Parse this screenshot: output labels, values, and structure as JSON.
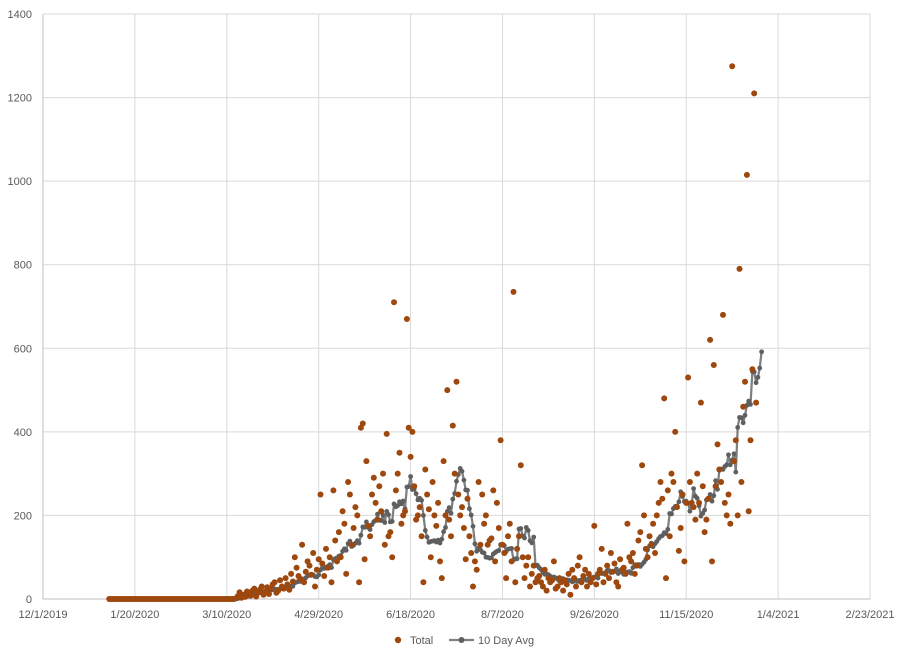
{
  "chart_data": {
    "type": "scatter",
    "title": "",
    "xlabel": "",
    "ylabel": "",
    "x_ticks": [
      "12/1/2019",
      "1/20/2020",
      "3/10/2020",
      "4/29/2020",
      "6/18/2020",
      "8/7/2020",
      "9/26/2020",
      "11/15/2020",
      "1/4/2021",
      "2/23/2021"
    ],
    "y_ticks": [
      "0",
      "200",
      "400",
      "600",
      "800",
      "1000",
      "1200",
      "1400"
    ],
    "xlim": [
      "2019-12-01",
      "2021-02-23"
    ],
    "ylim": [
      0,
      1400
    ],
    "grid": "vertical and horizontal gridlines",
    "legend_position": "bottom",
    "series": [
      {
        "name": "Total",
        "kind": "markers",
        "color": "#9e480e",
        "start_date": "2020-01-06",
        "values": [
          0,
          0,
          0,
          0,
          0,
          0,
          0,
          0,
          0,
          0,
          0,
          0,
          0,
          0,
          0,
          0,
          0,
          0,
          0,
          0,
          0,
          0,
          0,
          0,
          0,
          0,
          0,
          0,
          0,
          0,
          0,
          0,
          0,
          0,
          0,
          0,
          0,
          0,
          0,
          0,
          0,
          0,
          0,
          0,
          0,
          0,
          0,
          0,
          0,
          0,
          0,
          0,
          0,
          0,
          0,
          0,
          0,
          0,
          0,
          0,
          0,
          0,
          0,
          0,
          0,
          0,
          0,
          0,
          0,
          2,
          7,
          16,
          3,
          10,
          5,
          18,
          12,
          8,
          20,
          25,
          6,
          15,
          22,
          30,
          10,
          18,
          28,
          12,
          25,
          35,
          40,
          15,
          20,
          45,
          30,
          25,
          50,
          35,
          22,
          60,
          42,
          100,
          75,
          55,
          48,
          130,
          40,
          65,
          90,
          80,
          58,
          110,
          30,
          70,
          95,
          250,
          85,
          55,
          120,
          75,
          100,
          40,
          260,
          140,
          90,
          160,
          100,
          210,
          180,
          60,
          280,
          250,
          130,
          170,
          220,
          200,
          40,
          410,
          420,
          95,
          330,
          175,
          150,
          250,
          290,
          230,
          190,
          270,
          210,
          300,
          130,
          395,
          150,
          160,
          100,
          710,
          260,
          300,
          350,
          180,
          200,
          210,
          670,
          410,
          340,
          400,
          270,
          190,
          200,
          220,
          150,
          40,
          310,
          250,
          215,
          100,
          280,
          200,
          175,
          230,
          90,
          50,
          330,
          200,
          500,
          190,
          150,
          415,
          300,
          520,
          250,
          200,
          220,
          170,
          95,
          240,
          150,
          110,
          30,
          90,
          70,
          280,
          130,
          250,
          180,
          200,
          130,
          140,
          145,
          260,
          90,
          230,
          170,
          380,
          130,
          110,
          50,
          150,
          180,
          90,
          735,
          40,
          120,
          150,
          320,
          100,
          50,
          80,
          100,
          30,
          60,
          80,
          40,
          50,
          55,
          40,
          30,
          70,
          20,
          50,
          40,
          45,
          90,
          25,
          30,
          50,
          40,
          20,
          45,
          35,
          60,
          10,
          70,
          50,
          30,
          80,
          100,
          40,
          55,
          70,
          30,
          60,
          40,
          50,
          175,
          35,
          60,
          70,
          120,
          40,
          60,
          80,
          50,
          110,
          65,
          85,
          40,
          30,
          95,
          70,
          75,
          60,
          180,
          100,
          90,
          110,
          60,
          80,
          140,
          160,
          320,
          200,
          120,
          100,
          150,
          130,
          180,
          110,
          200,
          230,
          280,
          240,
          480,
          50,
          260,
          150,
          300,
          280,
          400,
          220,
          115,
          170,
          250,
          90,
          230,
          530,
          280,
          230,
          220,
          190,
          300,
          230,
          470,
          270,
          160,
          190,
          240,
          620,
          90,
          560,
          270,
          370,
          310,
          280,
          680,
          230,
          200,
          250,
          180,
          1275,
          330,
          380,
          200,
          790,
          280,
          460,
          520,
          1015,
          210,
          380,
          550,
          1210,
          470
        ]
      },
      {
        "name": "10 Day Avg",
        "kind": "line",
        "color": "#7f7f7f",
        "start_date": "2020-01-06",
        "values": [
          0,
          0,
          0,
          0,
          0,
          0,
          0,
          0,
          0,
          0,
          0,
          0,
          0,
          0,
          0,
          0,
          0,
          0,
          0,
          0,
          0,
          0,
          0,
          0,
          0,
          0,
          0,
          0,
          0,
          0,
          0,
          0,
          0,
          0,
          0,
          0,
          0,
          0,
          0,
          0,
          0,
          0,
          0,
          0,
          0,
          0,
          0,
          0,
          0,
          0,
          0,
          0,
          0,
          0,
          0,
          0,
          0,
          0,
          0,
          0,
          0,
          0,
          0,
          0,
          0,
          0,
          0,
          0,
          0,
          0.2,
          0.9,
          2.5,
          2.8,
          3.8,
          4.3,
          6.1,
          7.3,
          8.1,
          10.1,
          12.4,
          13.4,
          14.3,
          15.2,
          17.2,
          17.6,
          17.6,
          20.4,
          20.8,
          21.3,
          22.3,
          23.8,
          23.1,
          22.9,
          24.4,
          24.9,
          24.6,
          26.8,
          28.1,
          27.8,
          30.3,
          30.5,
          38.5,
          40.8,
          41.8,
          42.1,
          48.1,
          47.7,
          50.7,
          55.2,
          57.2,
          57.0,
          58.0,
          53.5,
          53.0,
          57.7,
          69.7,
          74.2,
          73.2,
          76.2,
          77.9,
          82.1,
          75.1,
          94.1,
          96.6,
          98.1,
          102.6,
          104.1,
          114.1,
          120.1,
          116.6,
          132.6,
          138.6,
          125.6,
          128.6,
          133.6,
          139.6,
          133.6,
          152.6,
          172.6,
          171.6,
          184.6,
          171.1,
          166.1,
          178.1,
          185.1,
          188.1,
          203.1,
          188.6,
          187.6,
          201.1,
          183.1,
          209.6,
          202.1,
          184.6,
          185.6,
          227.6,
          220.6,
          223.6,
          232.6,
          227.6,
          234.6,
          216.1,
          268.1,
          269.1,
          293.1,
          262.1,
          263.1,
          252.1,
          237.1,
          241.1,
          236.1,
          200.1,
          164.1,
          148.1,
          135.6,
          137.6,
          138.6,
          139.6,
          136.1,
          140.6,
          134.1,
          143.1,
          161.1,
          171.1,
          209.6,
          218.6,
          205.1,
          239.1,
          252.6,
          281.6,
          297.6,
          312.6,
          305.6,
          284.6,
          261.1,
          260.1,
          216.1,
          201.1,
          174.1,
          132.1,
          114.1,
          122.1,
          118.1,
          112.1,
          110.1,
          100.1,
          99.6,
          97.6,
          98.6,
          107.6,
          111.1,
          114.1,
          116.1,
          130.1,
          130.1,
          128.1,
          113.1,
          119.1,
          120.1,
          121.1,
          93.1,
          96.1,
          96.1,
          167.6,
          168.6,
          151.1,
          146.1,
          171.1,
          164.1,
          139.6,
          134.6,
          148.1,
          79.6,
          80.6,
          74.6,
          70.6,
          63.6,
          59.1,
          60.1,
          58.1,
          54.6,
          50.6,
          52.6,
          50.6,
          47.1,
          43.1,
          48.6,
          48.6,
          42.6,
          45.6,
          45.1,
          44.1,
          41.1,
          42.6,
          45.6,
          42.1,
          44.6,
          45.1,
          46.1,
          46.6,
          44.6,
          48.6,
          50.6,
          49.1,
          52.6,
          52.1,
          50.1,
          63.6,
          61.1,
          61.6,
          63.1,
          68.1,
          68.1,
          63.1,
          65.1,
          66.1,
          72.1,
          61.1,
          66.1,
          64.1,
          59.1,
          63.6,
          64.1,
          65.6,
          61.6,
          75.1,
          82.1,
          81.6,
          82.6,
          78.1,
          83.1,
          88.1,
          94.6,
          117.6,
          126.6,
          133.6,
          125.1,
          132.1,
          137.6,
          144.6,
          149.6,
          151.6,
          158.6,
          156.6,
          166.6,
          204.6,
          203.6,
          216.6,
          221.6,
          222.6,
          232.6,
          256.6,
          245.6,
          233.1,
          234.1,
          229.1,
          210.1,
          226.1,
          264.1,
          246.1,
          241.1,
          223.1,
          198.1,
          205.1,
          213.1,
          237.1,
          241.1,
          250.1,
          234.1,
          247.1,
          283.1,
          262.6,
          308.1,
          311.1,
          310.1,
          317.1,
          321.1,
          345.1,
          321.1,
          332.6,
          347.6,
          303.6,
          410.6,
          434.6,
          433.6,
          421.6,
          439.6,
          463.6,
          473.6,
          465.6,
          544.6,
          543.6,
          517.6,
          530.6,
          552.6,
          591.6
        ]
      }
    ]
  }
}
